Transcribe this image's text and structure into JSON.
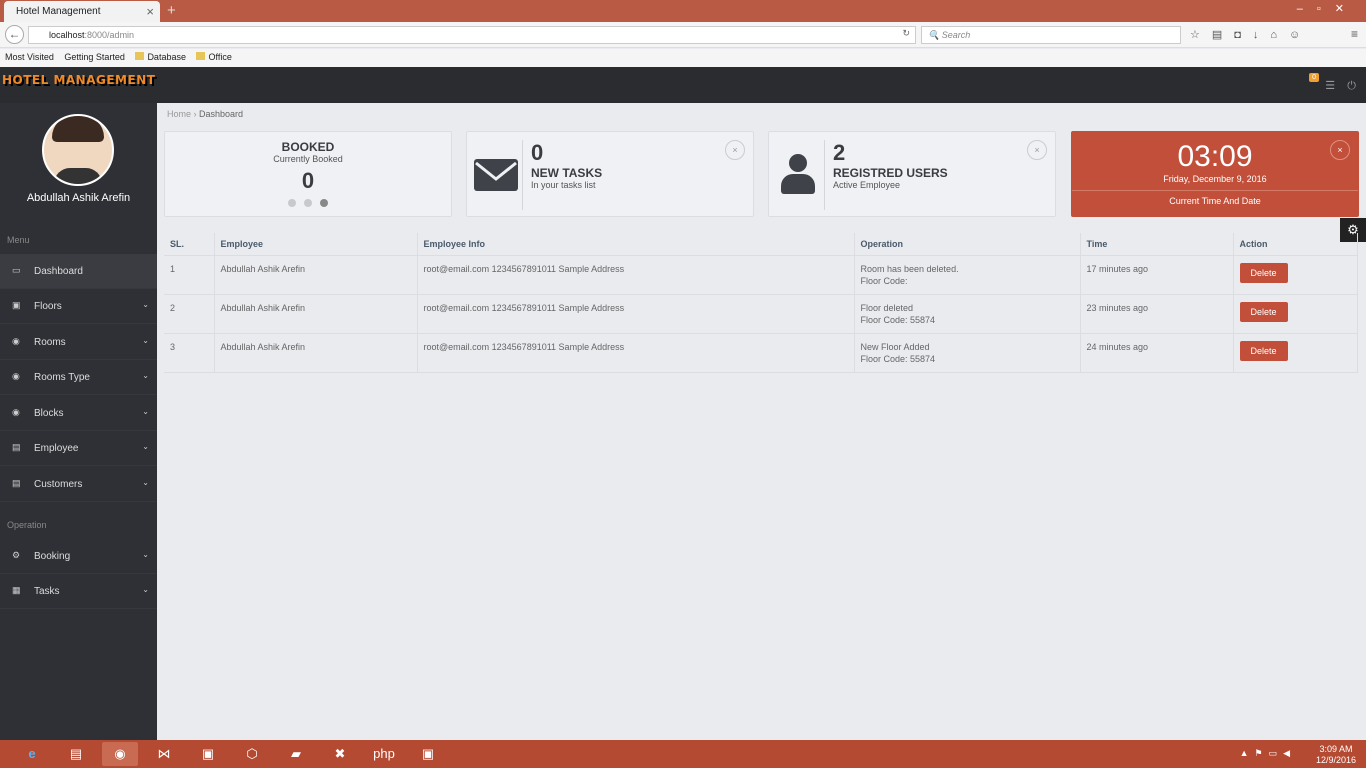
{
  "browser": {
    "tab_title": "Hotel Management",
    "url_host": "localhost",
    "url_rest": ":8000/admin",
    "search_placeholder": "Search",
    "bookmarks": [
      "Most Visited",
      "Getting Started",
      "Database",
      "Office"
    ]
  },
  "app": {
    "logo": "HOTEL MANAGEMENT",
    "notif_count": "0"
  },
  "sidebar": {
    "user_name": "Abdullah Ashik Arefin",
    "menu_label": "Menu",
    "operation_label": "Operation",
    "menu": [
      {
        "label": "Dashboard",
        "icon": "monitor-icon"
      },
      {
        "label": "Floors",
        "icon": "floors-icon"
      },
      {
        "label": "Rooms",
        "icon": "circle-icon"
      },
      {
        "label": "Rooms Type",
        "icon": "circle-icon"
      },
      {
        "label": "Blocks",
        "icon": "circle-icon"
      },
      {
        "label": "Employee",
        "icon": "file-icon"
      },
      {
        "label": "Customers",
        "icon": "file-icon"
      }
    ],
    "operation": [
      {
        "label": "Booking",
        "icon": "cogs-icon"
      },
      {
        "label": "Tasks",
        "icon": "chart-icon"
      }
    ]
  },
  "breadcrumb": {
    "home": "Home",
    "current": "Dashboard"
  },
  "cards": {
    "booked": {
      "title": "BOOKED",
      "subtitle": "Currently Booked",
      "value": "0"
    },
    "tasks": {
      "value": "0",
      "title": "NEW TASKS",
      "subtitle": "In your tasks list"
    },
    "users": {
      "value": "2",
      "title": "REGISTRED USERS",
      "subtitle": "Active Employee"
    },
    "time": {
      "time": "03:09",
      "date": "Friday, December 9, 2016",
      "label": "Current Time And Date"
    }
  },
  "table": {
    "headers": [
      "SL.",
      "Employee",
      "Employee Info",
      "Operation",
      "Time",
      "Action"
    ],
    "rows": [
      {
        "sl": "1",
        "employee": "Abdullah Ashik Arefin",
        "info": "root@email.com 1234567891011 Sample Address",
        "op1": "Room has been deleted.",
        "op2": "Floor Code:",
        "time": "17 minutes ago",
        "action": "Delete"
      },
      {
        "sl": "2",
        "employee": "Abdullah Ashik Arefin",
        "info": "root@email.com 1234567891011 Sample Address",
        "op1": "Floor deleted",
        "op2": "Floor Code: 55874",
        "time": "23 minutes ago",
        "action": "Delete"
      },
      {
        "sl": "3",
        "employee": "Abdullah Ashik Arefin",
        "info": "root@email.com 1234567891011 Sample Address",
        "op1": "New Floor Added",
        "op2": "Floor Code: 55874",
        "time": "24 minutes ago",
        "action": "Delete"
      }
    ]
  },
  "taskbar": {
    "time": "3:09 AM",
    "date": "12/9/2016"
  }
}
